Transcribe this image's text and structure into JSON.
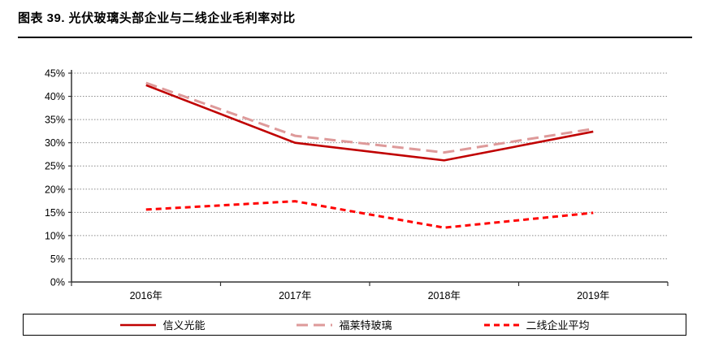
{
  "header": {
    "title": "图表 39. 光伏玻璃头部企业与二线企业毛利率对比"
  },
  "chart_data": {
    "type": "line",
    "title": "光伏玻璃头部企业与二线企业毛利率对比",
    "categories": [
      "2016年",
      "2017年",
      "2018年",
      "2019年"
    ],
    "series": [
      {
        "name": "信义光能",
        "values": [
          42.4,
          30.0,
          26.2,
          32.4
        ],
        "color": "#C00000",
        "dash": "solid"
      },
      {
        "name": "福莱特玻璃",
        "values": [
          42.9,
          31.5,
          27.9,
          33.0
        ],
        "color": "#DE9A9A",
        "dash": "long-dash"
      },
      {
        "name": "二线企业平均",
        "values": [
          15.6,
          17.4,
          11.7,
          14.9
        ],
        "color": "#FF0000",
        "dash": "short-dash"
      }
    ],
    "xlabel": "",
    "ylabel": "",
    "ylim": [
      0,
      45
    ],
    "y_tick_step": 5,
    "y_tick_labels": [
      "0%",
      "5%",
      "10%",
      "15%",
      "20%",
      "25%",
      "30%",
      "35%",
      "40%",
      "45%"
    ],
    "grid": "horizontal-dotted",
    "gridline_color": "#8c8c8c",
    "axis_color": "#333333",
    "legend_position": "bottom-boxed"
  }
}
